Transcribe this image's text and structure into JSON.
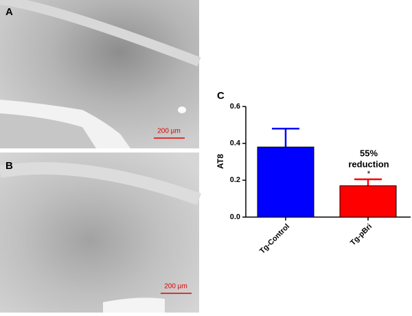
{
  "panels": {
    "a": {
      "label": "A",
      "scale_bar": "200 µm"
    },
    "b": {
      "label": "B",
      "scale_bar": "200 µm"
    },
    "c": {
      "label": "C"
    }
  },
  "chart_data": {
    "type": "bar",
    "y_label": "AT8",
    "categories": [
      "Tg-Control",
      "Tg-pBri"
    ],
    "values": [
      0.38,
      0.17
    ],
    "errors": [
      0.1,
      0.035
    ],
    "colors": [
      "#0000ff",
      "#ff0000"
    ],
    "ylim": [
      0,
      0.6
    ],
    "yticks": [
      {
        "value": 0,
        "label": "0.0"
      },
      0.2,
      0.4,
      0.6
    ],
    "annotation": [
      "55%",
      "reduction"
    ],
    "significance": "*"
  }
}
